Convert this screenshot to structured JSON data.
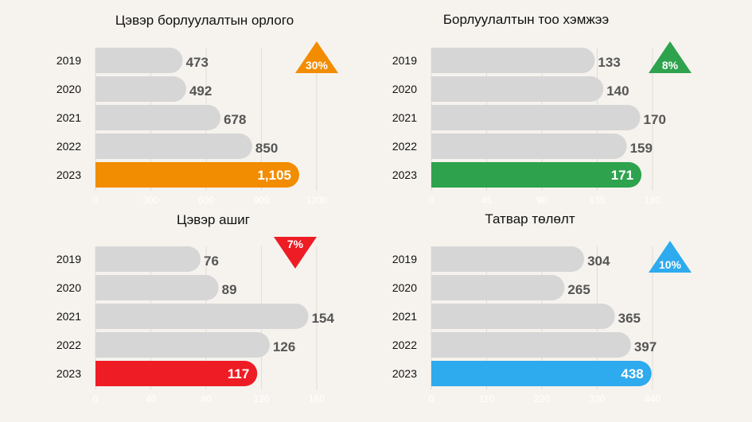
{
  "chart_data": [
    {
      "type": "bar",
      "orientation": "horizontal",
      "title": "Цэвэр борлуулалтын орлого",
      "categories": [
        "2019",
        "2020",
        "2021",
        "2022",
        "2023"
      ],
      "values": [
        473,
        492,
        678,
        850,
        1105
      ],
      "value_labels": [
        "473",
        "492",
        "678",
        "850",
        "1,105"
      ],
      "xlim": [
        0,
        1200
      ],
      "xticks": [
        "0",
        "300",
        "600",
        "900",
        "1200"
      ],
      "highlight_color": "#f28c00",
      "badge": {
        "text": "30%",
        "direction": "up",
        "color": "#f28c00"
      },
      "grid": true
    },
    {
      "type": "bar",
      "orientation": "horizontal",
      "title": "Борлуулалтын тоо хэмжээ",
      "categories": [
        "2019",
        "2020",
        "2021",
        "2022",
        "2023"
      ],
      "values": [
        133,
        140,
        170,
        159,
        171
      ],
      "value_labels": [
        "133",
        "140",
        "170",
        "159",
        "171"
      ],
      "xlim": [
        0,
        180
      ],
      "xticks": [
        "0",
        "45",
        "90",
        "135",
        "180"
      ],
      "highlight_color": "#2fa24e",
      "badge": {
        "text": "8%",
        "direction": "up",
        "color": "#2fa24e"
      },
      "grid": true
    },
    {
      "type": "bar",
      "orientation": "horizontal",
      "title": "Цэвэр ашиг",
      "categories": [
        "2019",
        "2020",
        "2021",
        "2022",
        "2023"
      ],
      "values": [
        76,
        89,
        154,
        126,
        117
      ],
      "value_labels": [
        "76",
        "89",
        "154",
        "126",
        "117"
      ],
      "xlim": [
        0,
        160
      ],
      "xticks": [
        "0",
        "40",
        "80",
        "120",
        "160"
      ],
      "highlight_color": "#ee1c24",
      "badge": {
        "text": "7%",
        "direction": "down",
        "color": "#ee1c24"
      },
      "grid": true
    },
    {
      "type": "bar",
      "orientation": "horizontal",
      "title": "Татвар төлөлт",
      "categories": [
        "2019",
        "2020",
        "2021",
        "2022",
        "2023"
      ],
      "values": [
        304,
        265,
        365,
        397,
        438
      ],
      "value_labels": [
        "304",
        "265",
        "365",
        "397",
        "438"
      ],
      "xlim": [
        0,
        440
      ],
      "xticks": [
        "0",
        "110",
        "220",
        "330",
        "440"
      ],
      "highlight_color": "#2eaaee",
      "badge": {
        "text": "10%",
        "direction": "up",
        "color": "#2eaaee"
      },
      "grid": true
    }
  ]
}
